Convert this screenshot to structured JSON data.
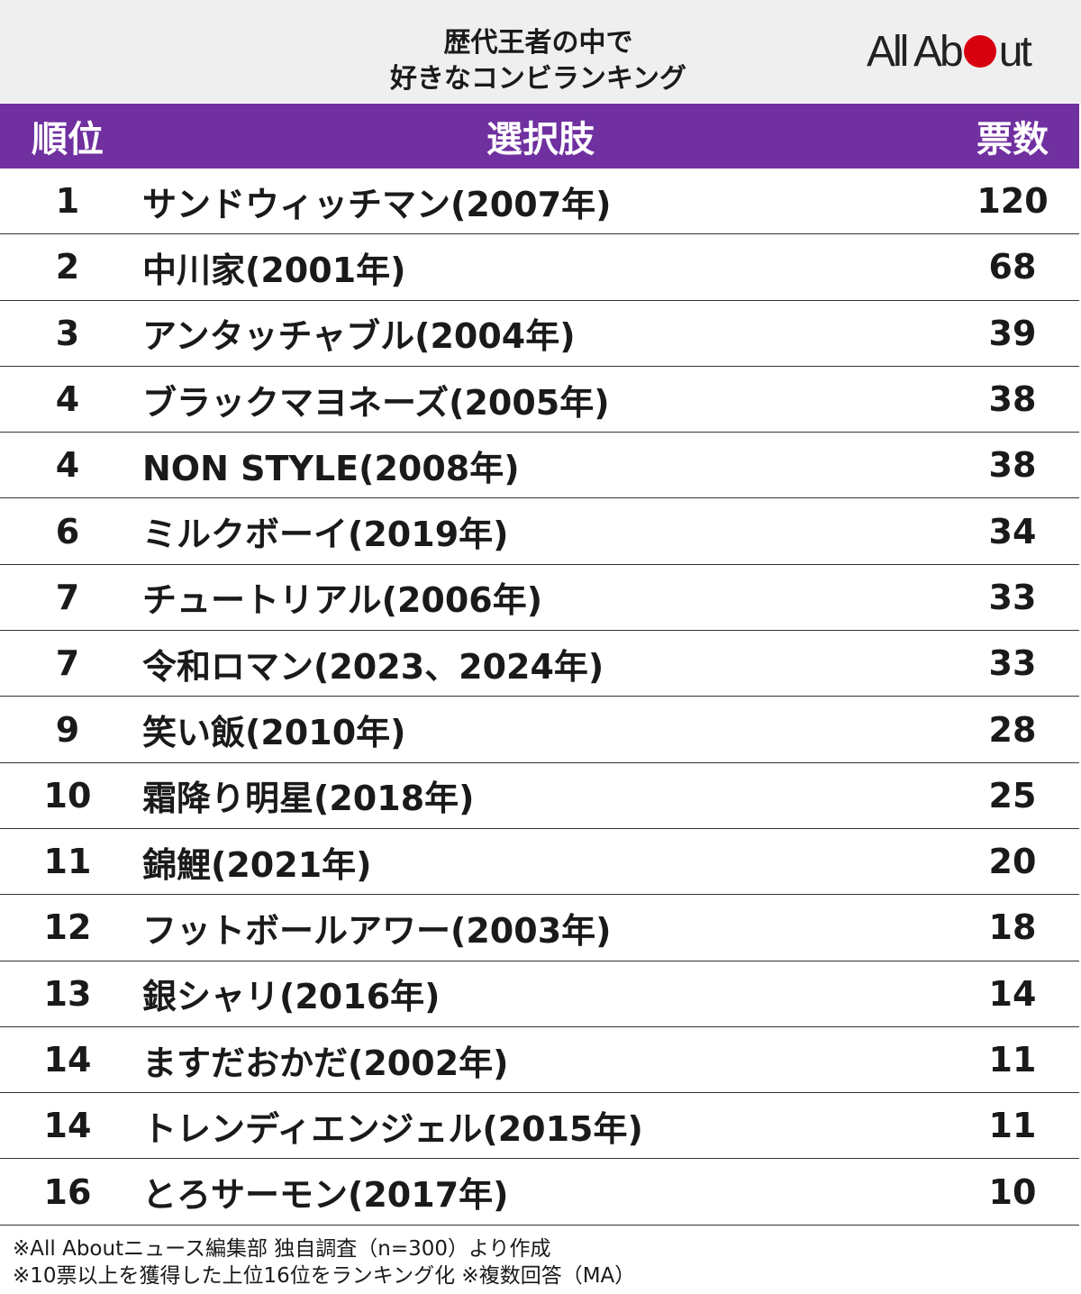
{
  "header": {
    "title_lines": [
      "歴代王者の中で",
      "好きなコンビランキング"
    ],
    "logo": "All About"
  },
  "table": {
    "columns": [
      "順位",
      "選択肢",
      "票数"
    ],
    "rows": [
      [
        1,
        "サンドウィッチマン(2007年)",
        120
      ],
      [
        2,
        "中川家(2001年)",
        68
      ],
      [
        3,
        "アンタッチャブル(2004年)",
        39
      ],
      [
        4,
        "ブラックマヨネーズ(2005年)",
        38
      ],
      [
        4,
        "NON STYLE(2008年)",
        38
      ],
      [
        6,
        "ミルクボーイ(2019年)",
        34
      ],
      [
        7,
        "チュートリアル(2006年)",
        33
      ],
      [
        7,
        "令和ロマン(2023、2024年)",
        33
      ],
      [
        9,
        "笑い飯(2010年)",
        28
      ],
      [
        10,
        "霜降り明星(2018年)",
        25
      ],
      [
        11,
        "錦鯉(2021年)",
        20
      ],
      [
        12,
        "フットボールアワー(2003年)",
        18
      ],
      [
        13,
        "銀シャリ(2016年)",
        14
      ],
      [
        14,
        "ますだおかだ(2002年)",
        11
      ],
      [
        14,
        "トレンディエンジェル(2015年)",
        11
      ],
      [
        16,
        "とろサーモン(2017年)",
        10
      ]
    ]
  },
  "footnotes": [
    "※All Aboutニュース編集部 独自調査（n=300）より作成",
    "※10票以上を獲得した上位16位をランキング化 ※複数回答（MA）"
  ]
}
